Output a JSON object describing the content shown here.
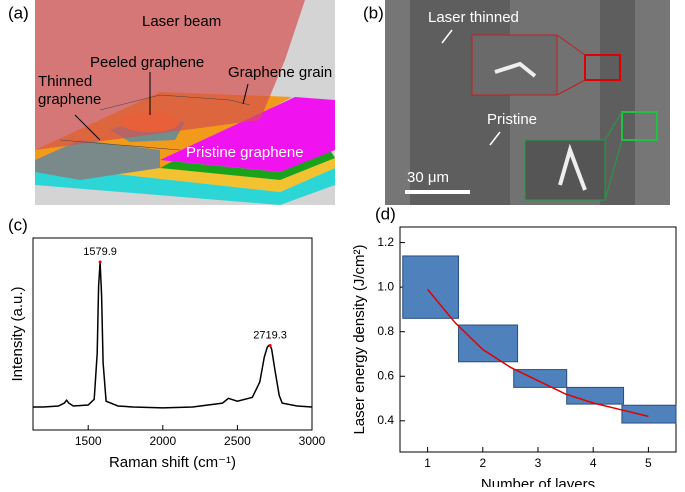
{
  "panel_a": {
    "label": "(a)",
    "laser_beam": "Laser beam",
    "peeled": "Peeled graphene",
    "grain": "Graphene grain",
    "thinned": [
      "Thinned",
      "graphene"
    ],
    "pristine": "Pristine graphene"
  },
  "panel_b": {
    "label": "(b)",
    "laser_thinned": "Laser thinned",
    "pristine": "Pristine",
    "scale_bar": "30 μm"
  },
  "chart_data": [
    {
      "type": "line",
      "panel_label": "(c)",
      "xlabel": "Raman shift (cm⁻¹)",
      "ylabel": "Intensity (a.u.)",
      "color": "#000000",
      "x": [
        1130,
        1200,
        1300,
        1340,
        1355,
        1370,
        1400,
        1500,
        1540,
        1560,
        1570,
        1580,
        1590,
        1600,
        1620,
        1700,
        1800,
        2000,
        2200,
        2400,
        2440,
        2460,
        2500,
        2600,
        2650,
        2680,
        2700,
        2710,
        2720,
        2730,
        2750,
        2780,
        2800,
        2900,
        3000
      ],
      "values": [
        12,
        12,
        12.5,
        14,
        15.5,
        14,
        12.5,
        13,
        16,
        40,
        75,
        87.5,
        70,
        35,
        15,
        12.5,
        12,
        11.5,
        12,
        14,
        16.5,
        16,
        15,
        17,
        25,
        38,
        43,
        44,
        44,
        42,
        32,
        18,
        14,
        12.5,
        12
      ],
      "xlim": [
        1130,
        3000
      ],
      "xticks": [
        1500,
        2000,
        2500,
        3000
      ],
      "ylim": [
        0,
        100
      ],
      "peak_labels": [
        1579.9,
        2719.3
      ]
    },
    {
      "type": "range_bar",
      "panel_label": "(d)",
      "xlabel": "Number of layers",
      "ylabel": "Laser energy density (J/cm²)",
      "color": "#4f81bd",
      "x_start": [
        0.55,
        1.56,
        2.56,
        3.52,
        4.52
      ],
      "x_end": [
        1.56,
        2.63,
        3.52,
        4.55,
        5.5
      ],
      "low": [
        0.86,
        0.665,
        0.55,
        0.475,
        0.39
      ],
      "high": [
        1.14,
        0.83,
        0.63,
        0.55,
        0.47
      ],
      "fit": {
        "color": "#e00000",
        "x": [
          1,
          1.5,
          2,
          2.5,
          3,
          3.5,
          4,
          4.5,
          5
        ],
        "values": [
          0.99,
          0.84,
          0.72,
          0.64,
          0.58,
          0.52,
          0.48,
          0.45,
          0.42
        ]
      },
      "xlim": [
        0.5,
        5.5
      ],
      "xticks": [
        1,
        2,
        3,
        4,
        5
      ],
      "ylim": [
        0.26,
        1.27
      ],
      "yticks": [
        0.4,
        0.6,
        0.8,
        {
          "value": 1,
          "label": "1.0"
        },
        1.2
      ]
    }
  ]
}
